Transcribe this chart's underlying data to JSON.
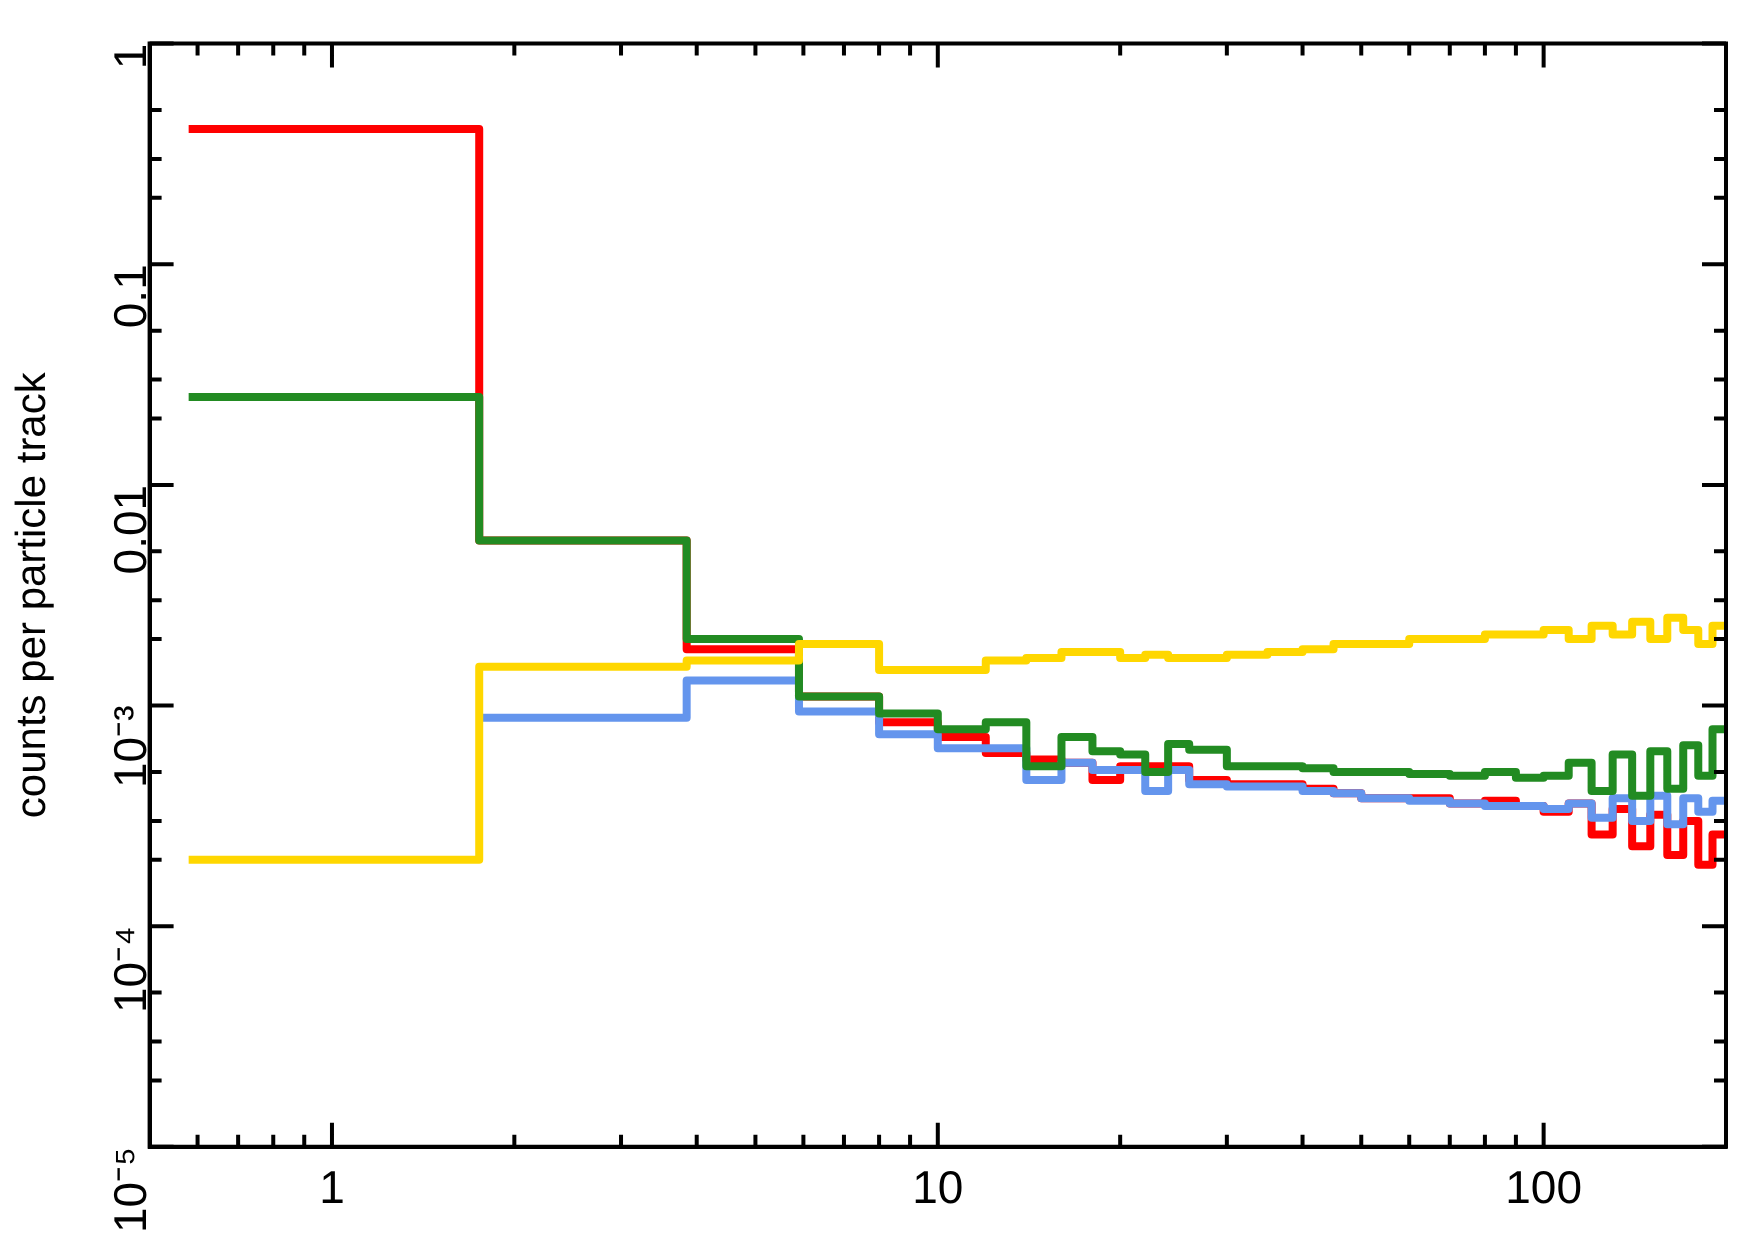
{
  "chart_data": {
    "type": "step",
    "ylabel": "counts per particle track",
    "log": "xy",
    "xlim": [
      0.5,
      200
    ],
    "ylim": [
      1e-05,
      1
    ],
    "xticks": [
      {
        "value": 0.6,
        "label": null
      },
      {
        "value": 0.7,
        "label": null
      },
      {
        "value": 0.8,
        "label": null
      },
      {
        "value": 0.9,
        "label": null
      },
      1,
      {
        "value": 2,
        "label": null
      },
      {
        "value": 3,
        "label": null
      },
      {
        "value": 4,
        "label": null
      },
      {
        "value": 5,
        "label": null
      },
      {
        "value": 6,
        "label": null
      },
      {
        "value": 7,
        "label": null
      },
      {
        "value": 8,
        "label": null
      },
      {
        "value": 9,
        "label": null
      },
      10,
      {
        "value": 20,
        "label": null
      },
      {
        "value": 30,
        "label": null
      },
      {
        "value": 40,
        "label": null
      },
      {
        "value": 50,
        "label": null
      },
      {
        "value": 60,
        "label": null
      },
      {
        "value": 70,
        "label": null
      },
      {
        "value": 80,
        "label": null
      },
      {
        "value": 90,
        "label": null
      },
      100,
      {
        "value": 200,
        "label": null
      }
    ],
    "yticks": [
      {
        "value": 1e-05,
        "label": "10⁻⁵"
      },
      {
        "value": 2e-05,
        "label": null
      },
      {
        "value": 3e-05,
        "label": null
      },
      {
        "value": 5e-05,
        "label": null
      },
      {
        "value": 0.0001,
        "label": "10⁻⁴"
      },
      {
        "value": 0.0002,
        "label": null
      },
      {
        "value": 0.0003,
        "label": null
      },
      {
        "value": 0.0005,
        "label": null
      },
      {
        "value": 0.001,
        "label": "10⁻³"
      },
      {
        "value": 0.002,
        "label": null
      },
      {
        "value": 0.003,
        "label": null
      },
      {
        "value": 0.005,
        "label": null
      },
      0.01,
      {
        "value": 0.02,
        "label": null
      },
      {
        "value": 0.03,
        "label": null
      },
      {
        "value": 0.05,
        "label": null
      },
      0.1,
      {
        "value": 0.2,
        "label": null
      },
      {
        "value": 0.3,
        "label": null
      },
      {
        "value": 0.5,
        "label": null
      },
      1
    ],
    "series": [
      {
        "color": "#ff0000",
        "x": [
          0.58,
          1.75,
          3.85,
          5.9,
          8,
          10,
          12,
          14,
          16,
          18,
          20,
          22,
          24,
          26,
          30,
          35,
          40,
          45,
          50,
          60,
          70,
          80,
          90,
          100,
          110,
          120,
          130,
          140,
          150,
          160,
          170,
          180,
          190,
          200
        ],
        "values": [
          0.41,
          0.0056,
          0.0018,
          0.0011,
          0.00084,
          0.00072,
          0.00061,
          0.00057,
          0.00055,
          0.00046,
          0.00053,
          0.00053,
          0.00053,
          0.00046,
          0.00044,
          0.00044,
          0.00042,
          0.0004,
          0.00038,
          0.00038,
          0.00036,
          0.00037,
          0.00035,
          0.00033,
          0.00036,
          0.00026,
          0.00034,
          0.00023,
          0.00032,
          0.00021,
          0.0003,
          0.00019,
          0.00026,
          0.00026
        ]
      },
      {
        "color": "#6495ed",
        "x": [
          1.75,
          3.85,
          5.9,
          8,
          10,
          12,
          14,
          16,
          18,
          20,
          22,
          24,
          26,
          30,
          35,
          40,
          45,
          50,
          60,
          70,
          80,
          90,
          100,
          110,
          120,
          130,
          140,
          150,
          160,
          170,
          180,
          190,
          200
        ],
        "values": [
          0.00088,
          0.0013,
          0.00094,
          0.00074,
          0.00064,
          0.00064,
          0.00046,
          0.00055,
          0.00051,
          0.00051,
          0.00041,
          0.00051,
          0.00044,
          0.00043,
          0.00043,
          0.00041,
          0.0004,
          0.00038,
          0.00037,
          0.00036,
          0.00035,
          0.00035,
          0.00034,
          0.00036,
          0.00031,
          0.00038,
          0.0003,
          0.00039,
          0.00029,
          0.00038,
          0.00033,
          0.00037,
          0.00037
        ]
      },
      {
        "color": "#228b22",
        "x": [
          0.58,
          1.75,
          3.85,
          5.9,
          8,
          10,
          12,
          14,
          16,
          18,
          20,
          22,
          24,
          26,
          30,
          35,
          40,
          45,
          50,
          60,
          70,
          80,
          90,
          100,
          110,
          120,
          130,
          140,
          150,
          160,
          170,
          180,
          190,
          200
        ],
        "values": [
          0.025,
          0.0056,
          0.002,
          0.0011,
          0.00092,
          0.00078,
          0.00084,
          0.00053,
          0.00072,
          0.00062,
          0.0006,
          0.0005,
          0.00067,
          0.00063,
          0.00053,
          0.00053,
          0.00052,
          0.0005,
          0.0005,
          0.00049,
          0.00048,
          0.0005,
          0.00047,
          0.00048,
          0.00055,
          0.00041,
          0.0006,
          0.00039,
          0.00062,
          0.00042,
          0.00066,
          0.00048,
          0.00078,
          0.00078
        ]
      },
      {
        "color": "#ffd700",
        "x": [
          0.58,
          1.75,
          3.85,
          5.9,
          8,
          10,
          12,
          14,
          16,
          18,
          20,
          22,
          24,
          26,
          30,
          35,
          40,
          45,
          50,
          60,
          70,
          80,
          90,
          100,
          110,
          120,
          130,
          140,
          150,
          160,
          170,
          180,
          190,
          200
        ],
        "values": [
          0.0002,
          0.0015,
          0.0016,
          0.0019,
          0.00145,
          0.00145,
          0.0016,
          0.00164,
          0.00175,
          0.00175,
          0.00164,
          0.0017,
          0.00164,
          0.00164,
          0.0017,
          0.00175,
          0.0018,
          0.0019,
          0.0019,
          0.002,
          0.002,
          0.0021,
          0.0021,
          0.0022,
          0.002,
          0.0023,
          0.0021,
          0.0024,
          0.002,
          0.0025,
          0.0022,
          0.0019,
          0.0023,
          0.0023
        ]
      }
    ]
  }
}
